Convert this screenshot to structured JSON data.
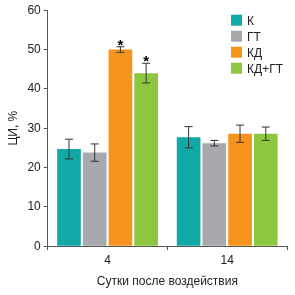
{
  "chart_data": {
    "type": "bar",
    "x_label": "Сутки после воздействия",
    "y_label": "ЦИ, %",
    "categories": [
      "4",
      "14"
    ],
    "series": [
      {
        "name": "К",
        "color": "#10a9a6",
        "values": [
          24.7,
          27.7
        ],
        "errors": [
          2.5,
          2.7
        ]
      },
      {
        "name": "ГТ",
        "color": "#a7a9ac",
        "values": [
          23.8,
          26.2
        ],
        "errors": [
          2.2,
          0.7
        ]
      },
      {
        "name": "КД",
        "color": "#f7941d",
        "values": [
          50.0,
          28.6
        ],
        "errors": [
          0.7,
          2.2
        ]
      },
      {
        "name": "КД+ГТ",
        "color": "#8dc63f",
        "values": [
          44.0,
          28.6
        ],
        "errors": [
          2.5,
          1.7
        ]
      }
    ],
    "annotations": [
      {
        "series": "КД",
        "category": "4",
        "text": "*"
      },
      {
        "series": "КД+ГТ",
        "category": "4",
        "text": "*"
      }
    ],
    "ylim": [
      0,
      60
    ],
    "yticks": [
      0,
      10,
      20,
      30,
      40,
      50,
      60
    ],
    "grid": false,
    "legend": "top-right"
  }
}
